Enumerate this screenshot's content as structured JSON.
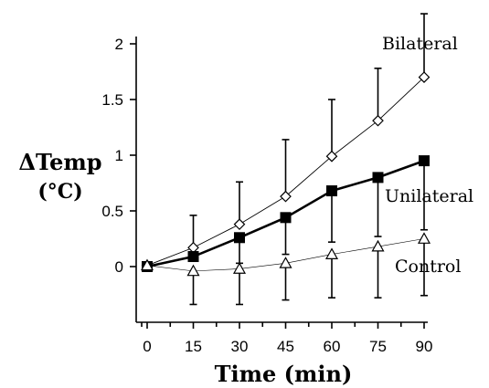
{
  "chart_data": {
    "type": "line",
    "xlabel": "Time (min)",
    "ylabel_line1": "ΔTemp",
    "ylabel_line2": "(°C)",
    "x": [
      0,
      15,
      30,
      45,
      60,
      75,
      90
    ],
    "xticks": [
      "0",
      "15",
      "30",
      "45",
      "60",
      "75",
      "90"
    ],
    "yticks": [
      "0",
      "0.5",
      "1",
      "1.5",
      "2"
    ],
    "xlim": [
      -7,
      92
    ],
    "ylim": [
      -0.5,
      2.1
    ],
    "grid": false,
    "legend": "inline labels at line ends",
    "series": [
      {
        "name": "Bilateral",
        "marker": "diamond-open",
        "values": [
          0.01,
          0.17,
          0.38,
          0.63,
          0.99,
          1.31,
          1.7
        ],
        "error_upper": [
          0,
          0.29,
          0.38,
          0.51,
          0.51,
          0.47,
          0.57
        ],
        "error_lower": [
          0,
          0,
          0,
          0,
          0,
          0,
          0
        ]
      },
      {
        "name": "Unilateral",
        "marker": "square-filled",
        "values": [
          0.0,
          0.09,
          0.26,
          0.44,
          0.68,
          0.8,
          0.95
        ],
        "error_upper": [
          0,
          0,
          0,
          0,
          0,
          0,
          0
        ],
        "error_lower": [
          0,
          0,
          0.23,
          0.33,
          0.46,
          0.53,
          0.62
        ]
      },
      {
        "name": "Control",
        "marker": "triangle-open",
        "values": [
          0.01,
          -0.04,
          -0.02,
          0.03,
          0.11,
          0.18,
          0.25
        ],
        "error_upper": [
          0,
          0,
          0,
          0,
          0,
          0,
          0
        ],
        "error_lower": [
          0,
          0.3,
          0.32,
          0.33,
          0.39,
          0.46,
          0.51
        ]
      }
    ]
  }
}
